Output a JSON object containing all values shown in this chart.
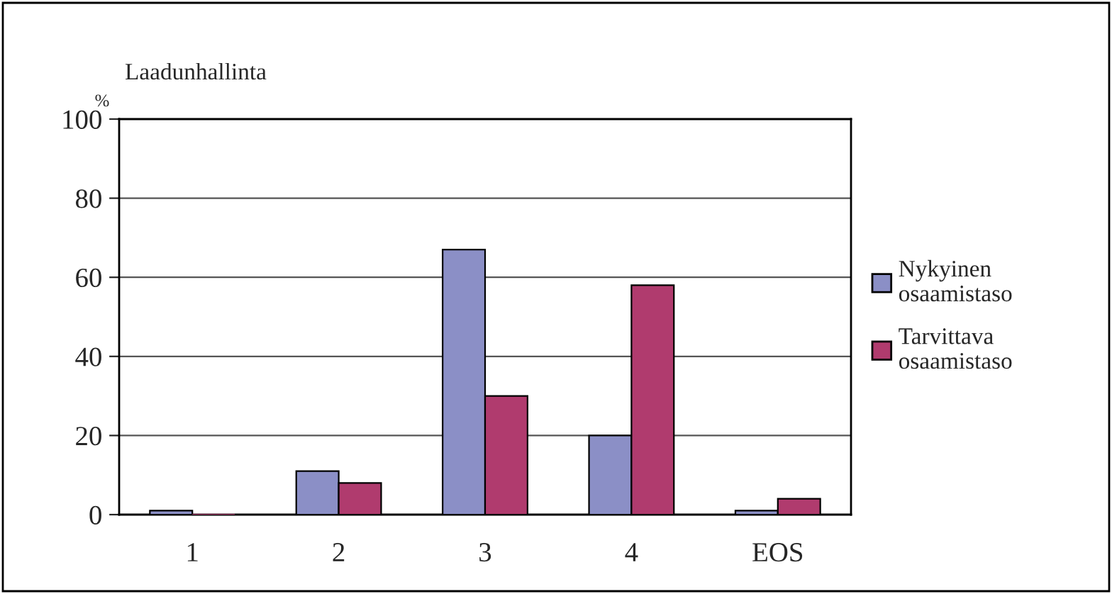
{
  "chart_data": {
    "type": "bar",
    "title": "Laadunhallinta",
    "ylabel": "%",
    "categories": [
      "1",
      "2",
      "3",
      "4",
      "EOS"
    ],
    "series": [
      {
        "name": "Nykyinen\nosaamistaso",
        "color": "#8b8fc6",
        "values": [
          1,
          11,
          67,
          20,
          1
        ]
      },
      {
        "name": "Tarvittava\nosaamistaso",
        "color": "#b03b6e",
        "values": [
          0,
          8,
          30,
          58,
          4
        ]
      }
    ],
    "ylim": [
      0,
      100
    ],
    "yticks": [
      0,
      20,
      40,
      60,
      80,
      100
    ],
    "grid": "y",
    "legend": "right"
  }
}
